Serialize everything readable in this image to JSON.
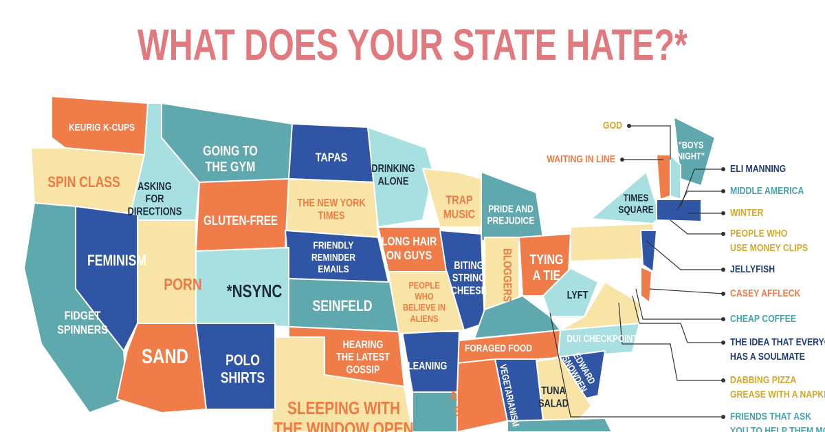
{
  "title": "WHAT DOES YOUR STATE HATE?*",
  "state_labels": [
    {
      "lines": [
        "KEURIG K-CUPS"
      ]
    },
    {
      "lines": [
        "SPIN CLASS"
      ]
    },
    {
      "lines": [
        "ASKING",
        "FOR",
        "DIRECTIONS"
      ]
    },
    {
      "lines": [
        "GOING TO",
        "THE GYM"
      ]
    },
    {
      "lines": [
        "TAPAS"
      ]
    },
    {
      "lines": [
        "DRINKING",
        "ALONE"
      ]
    },
    {
      "lines": [
        "THE NEW YORK",
        "TIMES"
      ]
    },
    {
      "lines": [
        "GLUTEN-FREE"
      ]
    },
    {
      "lines": [
        "TRAP",
        "MUSIC"
      ]
    },
    {
      "lines": [
        "PRIDE AND",
        "PREJUDICE"
      ]
    },
    {
      "lines": [
        "FEMINISM"
      ]
    },
    {
      "lines": [
        "FRIENDLY",
        "REMINDER",
        "EMAILS"
      ]
    },
    {
      "lines": [
        "LONG HAIR",
        "ON GUYS"
      ]
    },
    {
      "lines": [
        "PORN"
      ]
    },
    {
      "lines": [
        "*NSYNC"
      ]
    },
    {
      "lines": [
        "BITING",
        "STRING",
        "CHEESE"
      ]
    },
    {
      "lines": [
        "BLOGGERS"
      ]
    },
    {
      "lines": [
        "TYING",
        "A TIE"
      ]
    },
    {
      "lines": [
        "LYFT"
      ]
    },
    {
      "lines": [
        "FIDGET",
        "SPINNERS"
      ]
    },
    {
      "lines": [
        "SEINFELD"
      ]
    },
    {
      "lines": [
        "PEOPLE",
        "WHO",
        "BELIEVE IN",
        "ALIENS"
      ]
    },
    {
      "lines": [
        "SAND"
      ]
    },
    {
      "lines": [
        "POLO",
        "SHIRTS"
      ]
    },
    {
      "lines": [
        "HEARING",
        "THE LATEST",
        "GOSSIP"
      ]
    },
    {
      "lines": [
        "CLEANING"
      ]
    },
    {
      "lines": [
        "FORAGED FOOD"
      ]
    },
    {
      "lines": [
        "DUI CHECKPOINTS"
      ]
    },
    {
      "lines": [
        "EDWARD",
        "SNOWDEN"
      ]
    },
    {
      "lines": [
        "VEGETARIANISM"
      ]
    },
    {
      "lines": [
        "ANAL",
        "SEX"
      ]
    },
    {
      "lines": [
        "TUNA",
        "SALAD"
      ]
    },
    {
      "lines": [
        "SLEEPING WITH",
        "THE WINDOW OPEN"
      ]
    },
    {
      "lines": [
        "TIMES",
        "SQUARE"
      ]
    },
    {
      "lines": [
        "\"BOYS",
        "NIGHT\""
      ]
    }
  ],
  "callouts": [
    {
      "lines": [
        "GOD"
      ],
      "color": "#d4a72c"
    },
    {
      "lines": [
        "WAITING IN LINE"
      ],
      "color": "#ee7b45"
    },
    {
      "lines": [
        "ELI MANNING"
      ],
      "color": "#1f3b7a"
    },
    {
      "lines": [
        "MIDDLE AMERICA"
      ],
      "color": "#46a3ab"
    },
    {
      "lines": [
        "WINTER"
      ],
      "color": "#d4a72c"
    },
    {
      "lines": [
        "PEOPLE WHO",
        "USE MONEY CLIPS"
      ],
      "color": "#d4a72c"
    },
    {
      "lines": [
        "JELLYFISH"
      ],
      "color": "#1f3b7a"
    },
    {
      "lines": [
        "CASEY AFFLECK"
      ],
      "color": "#ee7b45"
    },
    {
      "lines": [
        "CHEAP COFFEE"
      ],
      "color": "#46a3ab"
    },
    {
      "lines": [
        "THE IDEA THAT EVERYON",
        "HAS A SOULMATE"
      ],
      "color": "#1f3b7a"
    },
    {
      "lines": [
        "DABBING PIZZA",
        "GREASE WITH A NAPKI"
      ],
      "color": "#d4a72c"
    },
    {
      "lines": [
        "FRIENDS THAT ASK",
        "YOU TO HELP THEM MO"
      ],
      "color": "#46a3ab"
    }
  ]
}
